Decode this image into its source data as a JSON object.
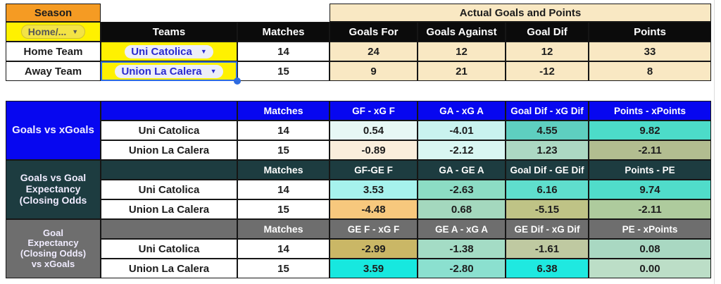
{
  "colors": {
    "season_bg": "#F59B23",
    "cream_bg": "#F9E8C3",
    "yellow_bg": "#FFF100",
    "black_header_bg": "#0B0B0B",
    "section1_bg": "#0707F0",
    "section2_bg": "#1D3C40",
    "section3_bg": "#6E6E6E",
    "selection_blue": "#2E6BE0",
    "team_text_blue": "#2B2BD0"
  },
  "top": {
    "season_label": "Season",
    "filter_label": "Home/...",
    "teams_header": "Teams",
    "matches_header": "Matches",
    "group_header": "Actual Goals and Points",
    "columns": [
      "Goals For",
      "Goals Against",
      "Goal Dif",
      "Points"
    ],
    "rows": [
      {
        "label": "Home Team",
        "team": "Uni Catolica",
        "matches": "14",
        "values": [
          "24",
          "12",
          "12",
          "33"
        ]
      },
      {
        "label": "Away Team",
        "team": "Union La Calera",
        "matches": "15",
        "values": [
          "9",
          "21",
          "-12",
          "8"
        ]
      }
    ]
  },
  "sections": [
    {
      "label": "Goals vs xGoals",
      "matches_header": "Matches",
      "columns": [
        "GF - xG F",
        "GA - xG A",
        "Goal Dif - xG Dif",
        "Points - xPoints"
      ],
      "bg": "#0707F0",
      "rows": [
        {
          "team": "Uni Catolica",
          "matches": "14",
          "values": [
            "0.54",
            "-4.01",
            "4.55",
            "9.82"
          ],
          "colors": [
            "#E7F8F5",
            "#C9F3EF",
            "#5ECFC0",
            "#4CDCC9"
          ]
        },
        {
          "team": "Union La Calera",
          "matches": "15",
          "values": [
            "-0.89",
            "-2.12",
            "1.23",
            "-2.11"
          ],
          "colors": [
            "#FAEEDC",
            "#D9F6F2",
            "#ACD8C3",
            "#B2BD90"
          ]
        }
      ]
    },
    {
      "label": "Goals vs Goal\nExpectancy\n(Closing Odds",
      "matches_header": "Matches",
      "columns": [
        "GF-GE F",
        "GA - GE A",
        "Goal Dif - GE Dif",
        "Points - PE"
      ],
      "bg": "#1D3C40",
      "rows": [
        {
          "team": "Uni Catolica",
          "matches": "14",
          "values": [
            "3.53",
            "-2.63",
            "6.16",
            "9.74"
          ],
          "colors": [
            "#A6F2ED",
            "#8CDCC4",
            "#5FDECD",
            "#50DCCA"
          ]
        },
        {
          "team": "Union La Calera",
          "matches": "15",
          "values": [
            "-4.48",
            "0.68",
            "-5.15",
            "-2.11"
          ],
          "colors": [
            "#F7C87D",
            "#A4D8BE",
            "#BFC386",
            "#AECB9D"
          ]
        }
      ]
    },
    {
      "label": "Goal\nExpectancy\n(Closing Odds)\nvs xGoals",
      "matches_header": "Matches",
      "columns": [
        "GE F - xG F",
        "GE A - xG A",
        "GE Dif - xG Dif",
        "PE - xPoints"
      ],
      "bg": "#6E6E6E",
      "rows": [
        {
          "team": "Uni Catolica",
          "matches": "14",
          "values": [
            "-2.99",
            "-1.38",
            "-1.61",
            "0.08"
          ],
          "colors": [
            "#CAB766",
            "#A4DCC5",
            "#BFC9A1",
            "#A9D8C2"
          ]
        },
        {
          "team": "Union La Calera",
          "matches": "15",
          "values": [
            "3.59",
            "-2.80",
            "6.38",
            "0.00"
          ],
          "colors": [
            "#17E8DF",
            "#8BE0CF",
            "#1FE9E0",
            "#BCDEC7"
          ]
        }
      ]
    }
  ]
}
